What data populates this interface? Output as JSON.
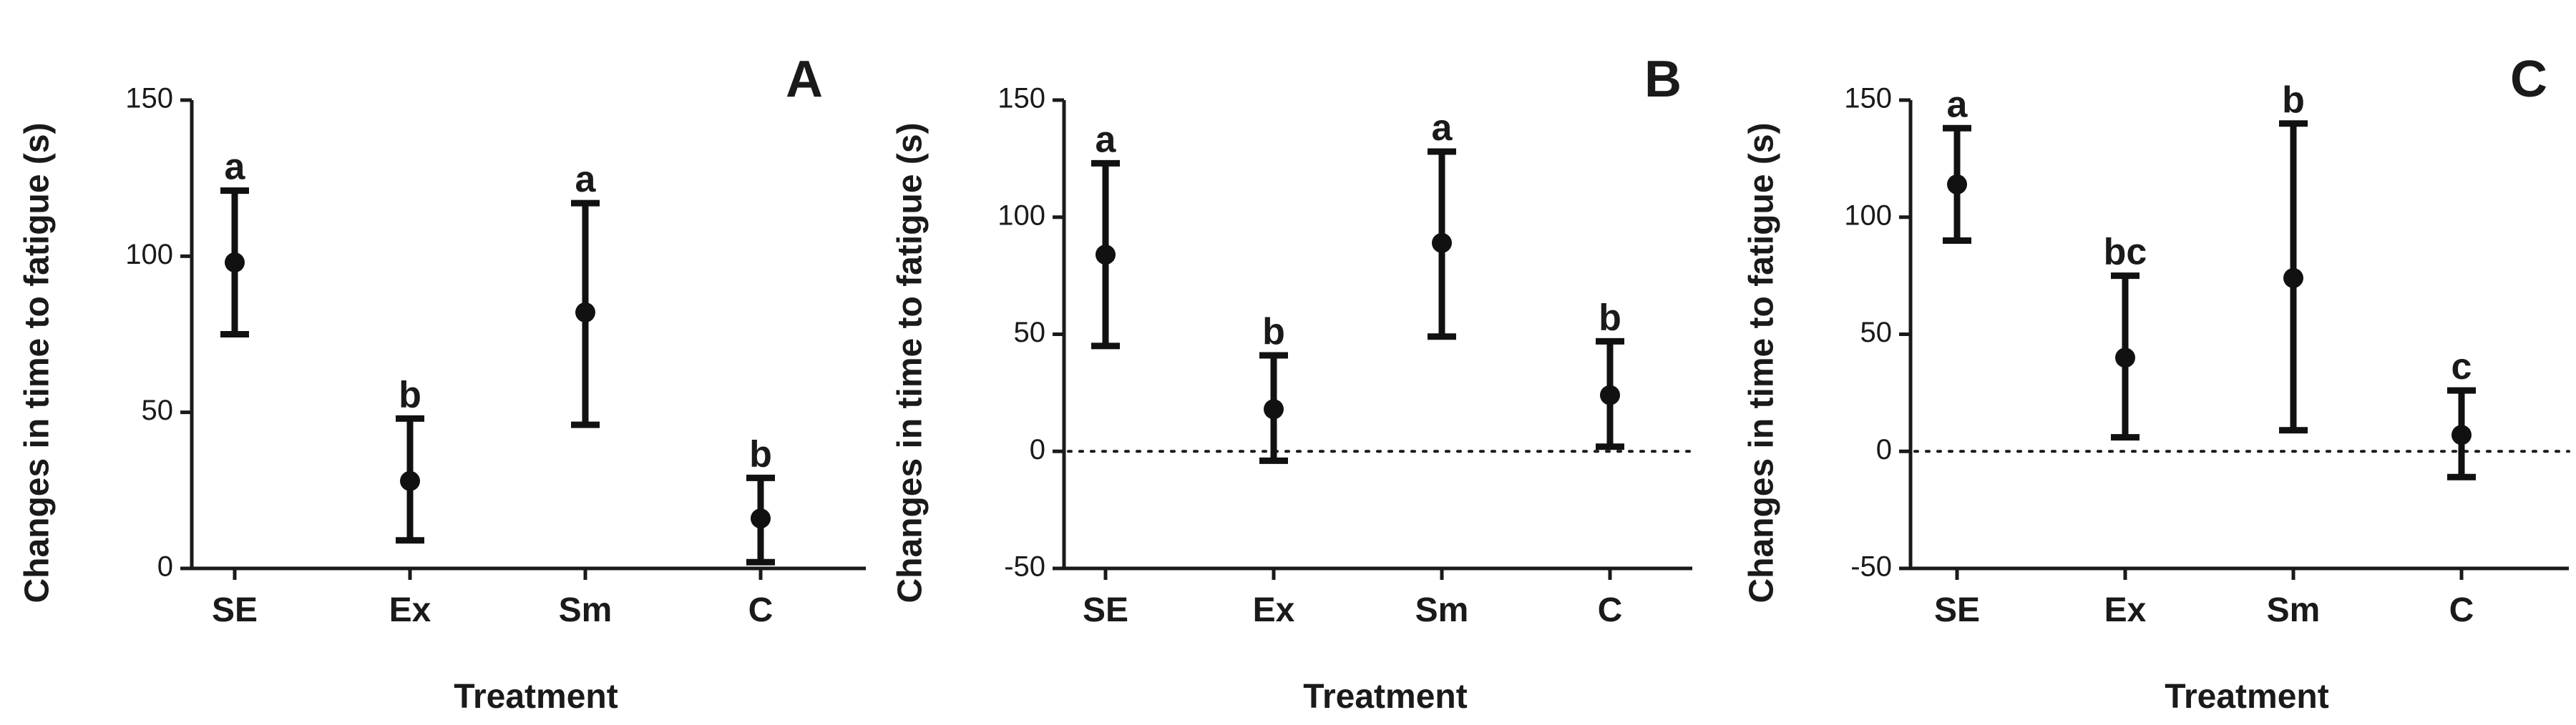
{
  "chart_data": [
    {
      "type": "scatter",
      "panel": "A",
      "xlabel": "Treatment",
      "ylabel": "Changes in time to fatigue (s)",
      "categories": [
        "SE",
        "Ex",
        "Sm",
        "C"
      ],
      "means": [
        98,
        28,
        82,
        16
      ],
      "lower": [
        75,
        9,
        46,
        2
      ],
      "upper": [
        121,
        48,
        117,
        29
      ],
      "sig_labels": [
        "a",
        "b",
        "a",
        "b"
      ],
      "ylim": [
        0,
        150
      ],
      "yticks": [
        0,
        50,
        100,
        150
      ],
      "reference_line": null
    },
    {
      "type": "scatter",
      "panel": "B",
      "xlabel": "Treatment",
      "ylabel": "Changes in time to fatigue (s)",
      "categories": [
        "SE",
        "Ex",
        "Sm",
        "C"
      ],
      "means": [
        84,
        18,
        89,
        24
      ],
      "lower": [
        45,
        -4,
        49,
        2
      ],
      "upper": [
        123,
        41,
        128,
        47
      ],
      "sig_labels": [
        "a",
        "b",
        "a",
        "b"
      ],
      "ylim": [
        -50,
        150
      ],
      "yticks": [
        -50,
        0,
        50,
        100,
        150
      ],
      "reference_line": 0
    },
    {
      "type": "scatter",
      "panel": "C",
      "xlabel": "Treatment",
      "ylabel": "Changes in time to fatigue (s)",
      "categories": [
        "SE",
        "Ex",
        "Sm",
        "C"
      ],
      "means": [
        114,
        40,
        74,
        7
      ],
      "lower": [
        90,
        6,
        9,
        -11
      ],
      "upper": [
        138,
        75,
        140,
        26
      ],
      "sig_labels": [
        "a",
        "bc",
        "b",
        "c"
      ],
      "ylim": [
        -50,
        150
      ],
      "yticks": [
        -50,
        0,
        50,
        100,
        150
      ],
      "reference_line": 0
    }
  ]
}
